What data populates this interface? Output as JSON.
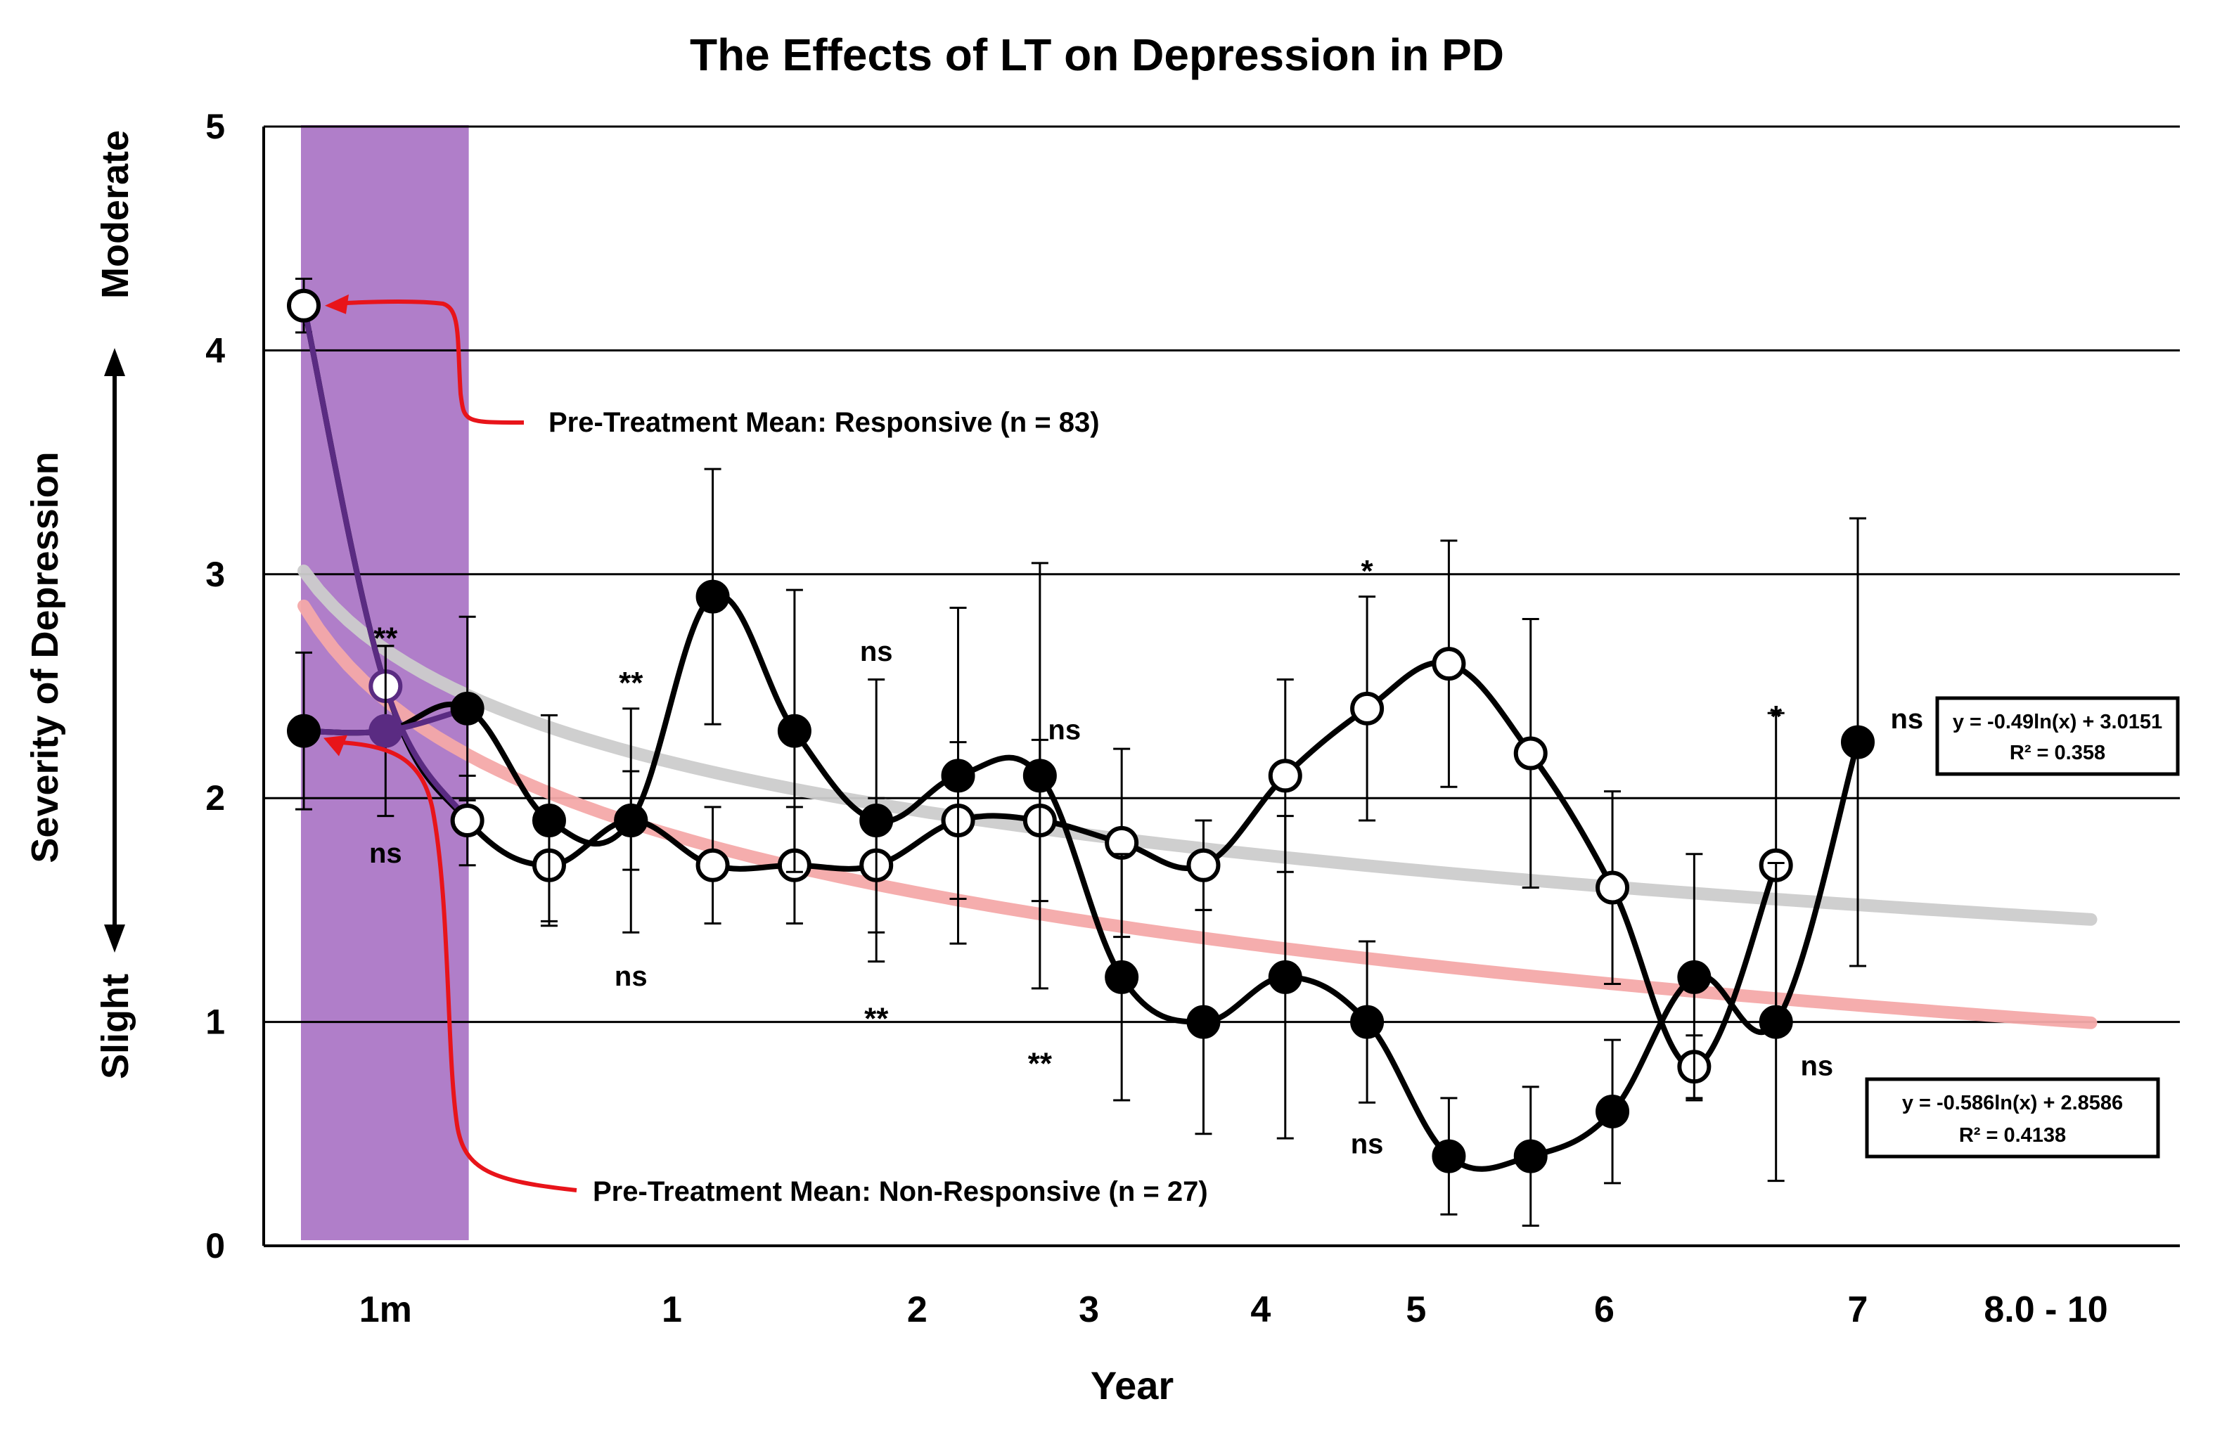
{
  "chart_data": {
    "type": "line",
    "title": "The Effects of LT on Depression in PD",
    "xlabel": "Year",
    "ylabel": "Severity of Depression",
    "ylabel_high": "Moderate",
    "ylabel_low": "Slight",
    "ylim": [
      0,
      5
    ],
    "y_ticks": [
      "0",
      "1",
      "2",
      "3",
      "4",
      "5"
    ],
    "x_tick_labels": [
      {
        "label": "1m",
        "x": 1.5
      },
      {
        "label": "1",
        "x": 5.0
      },
      {
        "label": "2",
        "x": 8.0
      },
      {
        "label": "3",
        "x": 10.1
      },
      {
        "label": "4",
        "x": 12.2
      },
      {
        "label": "5",
        "x": 14.1
      },
      {
        "label": "6",
        "x": 16.4
      },
      {
        "label": "7",
        "x": 19.5
      },
      {
        "label": "8.0 - 10",
        "x": 21.8
      }
    ],
    "shaded_band": {
      "label": "1m",
      "x_from": 0.5,
      "x_to": 2.5,
      "color": "#b07ec9"
    },
    "series": [
      {
        "name": "Responsive (n = 83)",
        "marker": "open",
        "x": [
          0.5,
          1.5,
          2.5,
          3.5,
          4.5,
          5.5,
          6.5,
          7.5,
          8.5,
          9.5,
          10.5,
          11.5,
          12.5,
          13.5,
          14.5,
          15.5,
          16.5,
          17.5,
          18.5
        ],
        "values": [
          4.2,
          2.5,
          1.9,
          1.7,
          1.9,
          1.7,
          1.7,
          1.7,
          1.9,
          1.9,
          1.8,
          1.7,
          2.1,
          2.4,
          2.6,
          2.2,
          1.6,
          0.8,
          1.7
        ],
        "errors": [
          0.12,
          0.18,
          0.2,
          0.25,
          0.22,
          0.26,
          0.26,
          0.3,
          0.35,
          0.36,
          0.42,
          0.2,
          0.43,
          0.5,
          0.55,
          0.6,
          0.43,
          0.14,
          0.68
        ]
      },
      {
        "name": "Non-Responsive (n = 27)",
        "marker": "filled",
        "x": [
          0.5,
          1.5,
          2.5,
          3.5,
          4.5,
          5.5,
          6.5,
          7.5,
          8.5,
          9.5,
          10.5,
          11.5,
          12.5,
          13.5,
          14.5,
          15.5,
          16.5,
          17.5,
          18.5,
          19.5
        ],
        "values": [
          2.3,
          2.3,
          2.4,
          1.9,
          1.9,
          2.9,
          2.3,
          1.9,
          2.1,
          2.1,
          1.2,
          1.0,
          1.2,
          1.0,
          0.4,
          0.4,
          0.6,
          1.2,
          1.0,
          2.25
        ],
        "errors": [
          0.35,
          0.38,
          0.41,
          0.47,
          0.5,
          0.57,
          0.63,
          0.63,
          0.75,
          0.95,
          0.55,
          0.5,
          0.72,
          0.36,
          0.26,
          0.31,
          0.32,
          0.55,
          0.71,
          1.0
        ]
      }
    ],
    "trendlines": [
      {
        "name": "Responsive trend",
        "equation": "y = -0.49ln(x) + 3.0151",
        "r2": "R² = 0.358",
        "a": -0.49,
        "b": 3.0151,
        "color": "#cccccc"
      },
      {
        "name": "Non-Responsive trend",
        "equation": "y = -0.586ln(x) + 2.8586",
        "r2": "R² = 0.4138",
        "a": -0.586,
        "b": 2.8586,
        "color": "#f4a9a9"
      }
    ],
    "significance_labels": [
      {
        "text": "**",
        "x": 1.5,
        "y": 2.75
      },
      {
        "text": "ns",
        "x": 1.5,
        "y": 1.75
      },
      {
        "text": "**",
        "x": 4.5,
        "y": 2.55
      },
      {
        "text": "ns",
        "x": 4.5,
        "y": 1.2
      },
      {
        "text": "ns",
        "x": 7.5,
        "y": 2.65
      },
      {
        "text": "**",
        "x": 7.5,
        "y": 1.05
      },
      {
        "text": "ns",
        "x": 9.8,
        "y": 2.3
      },
      {
        "text": "**",
        "x": 9.5,
        "y": 0.85
      },
      {
        "text": "*",
        "x": 13.5,
        "y": 3.05
      },
      {
        "text": "ns",
        "x": 13.5,
        "y": 0.45
      },
      {
        "text": "*",
        "x": 18.5,
        "y": 2.4
      },
      {
        "text": "ns",
        "x": 20.1,
        "y": 2.35
      },
      {
        "text": "ns",
        "x": 19.0,
        "y": 0.8
      }
    ],
    "annotations": [
      {
        "text": "Pre-Treatment Mean: Responsive (n = 83)",
        "points_to": {
          "x": 0.5,
          "y": 4.2
        },
        "color": "#e8141a"
      },
      {
        "text": "Pre-Treatment Mean: Non-Responsive (n = 27)",
        "points_to": {
          "x": 0.5,
          "y": 2.3
        },
        "color": "#e8141a"
      }
    ]
  }
}
